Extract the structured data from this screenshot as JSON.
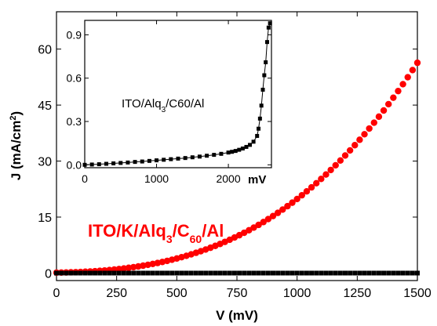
{
  "chart_data": [
    {
      "type": "scatter",
      "xlabel": "V (mV)",
      "ylabel_parts": {
        "base": "J (mA/cm",
        "sup": "2",
        "end": ")"
      },
      "xlim": [
        0,
        1500
      ],
      "ylim": [
        -2,
        70
      ],
      "x_ticks": [
        0,
        250,
        500,
        750,
        1000,
        1250,
        1500
      ],
      "y_ticks": [
        0,
        15,
        30,
        45,
        60
      ],
      "series_label_parts": {
        "a": "ITO/K/Alq",
        "sub1": "3",
        "b": "/C",
        "sub2": "60",
        "c": "/Al"
      },
      "series": [
        {
          "name": "ITO/K/Alq3/C60/Al",
          "marker": "circle",
          "color": "#ff0000",
          "x": [
            0,
            20,
            40,
            60,
            80,
            100,
            120,
            140,
            160,
            180,
            200,
            220,
            240,
            260,
            280,
            300,
            320,
            340,
            360,
            380,
            400,
            420,
            440,
            460,
            480,
            500,
            520,
            540,
            560,
            580,
            600,
            620,
            640,
            660,
            680,
            700,
            720,
            740,
            760,
            780,
            800,
            820,
            840,
            860,
            880,
            900,
            920,
            940,
            960,
            980,
            1000,
            1020,
            1040,
            1060,
            1080,
            1100,
            1120,
            1140,
            1160,
            1180,
            1200,
            1220,
            1240,
            1260,
            1280,
            1300,
            1320,
            1340,
            1360,
            1380,
            1400,
            1420,
            1440,
            1460,
            1480,
            1500
          ],
          "y": [
            0.12,
            0.14,
            0.17,
            0.21,
            0.25,
            0.3,
            0.36,
            0.43,
            0.51,
            0.6,
            0.7,
            0.82,
            0.95,
            1.09,
            1.24,
            1.41,
            1.59,
            1.78,
            1.99,
            2.21,
            2.45,
            2.7,
            2.98,
            3.27,
            3.58,
            3.91,
            4.26,
            4.63,
            5.02,
            5.43,
            5.86,
            6.31,
            6.79,
            7.29,
            7.81,
            8.36,
            8.93,
            9.53,
            10.15,
            10.8,
            11.48,
            12.18,
            12.91,
            13.67,
            14.46,
            15.28,
            16.13,
            17.01,
            17.92,
            18.86,
            19.84,
            20.85,
            21.89,
            22.96,
            24.07,
            25.22,
            26.4,
            27.62,
            28.87,
            30.16,
            31.49,
            32.86,
            34.26,
            35.71,
            37.19,
            38.72,
            40.29,
            41.9,
            43.55,
            45.24,
            46.98,
            48.76,
            50.59,
            52.46,
            54.37,
            56.33
          ]
        },
        {
          "name": "ITO/Alq3/C60/Al",
          "marker": "square",
          "color": "#000000",
          "x": [
            0,
            20,
            40,
            60,
            80,
            100,
            120,
            140,
            160,
            180,
            200,
            220,
            240,
            260,
            280,
            300,
            320,
            340,
            360,
            380,
            400,
            420,
            440,
            460,
            480,
            500,
            520,
            540,
            560,
            580,
            600,
            620,
            640,
            660,
            680,
            700,
            720,
            740,
            760,
            780,
            800,
            820,
            840,
            860,
            880,
            900,
            920,
            940,
            960,
            980,
            1000,
            1020,
            1040,
            1060,
            1080,
            1100,
            1120,
            1140,
            1160,
            1180,
            1200,
            1220,
            1240,
            1260,
            1280,
            1300,
            1320,
            1340,
            1360,
            1380,
            1400,
            1420,
            1440,
            1460,
            1480,
            1500
          ],
          "y": [
            0,
            0,
            0,
            0,
            0,
            0,
            0,
            0,
            0,
            0,
            0,
            0,
            0,
            0,
            0,
            0,
            0,
            0,
            0,
            0,
            0,
            0,
            0,
            0,
            0,
            0,
            0,
            0,
            0,
            0,
            0,
            0,
            0,
            0,
            0,
            0,
            0,
            0,
            0,
            0,
            0,
            0,
            0,
            0,
            0,
            0,
            0,
            0,
            0,
            0,
            0,
            0,
            0,
            0,
            0,
            0,
            0,
            0,
            0,
            0,
            0,
            0,
            0,
            0,
            0,
            0,
            0,
            0,
            0,
            0,
            0,
            0,
            0,
            0,
            0,
            0
          ]
        }
      ]
    },
    {
      "type": "line",
      "inset": true,
      "xlabel": "mV",
      "xlim": [
        0,
        2600
      ],
      "ylim": [
        -0.02,
        1.0
      ],
      "x_ticks": [
        0,
        1000,
        2000
      ],
      "x_tick_labels": [
        "0",
        "1000",
        "2000"
      ],
      "y_ticks": [
        0.0,
        0.3,
        0.6,
        0.9
      ],
      "y_tick_labels": [
        "0.0",
        "0.3",
        "0.6",
        "0.9"
      ],
      "annotation_parts": {
        "a": "ITO/Alq",
        "sub1": "3",
        "b": "/C60/Al"
      },
      "series": [
        {
          "name": "ITO/Alq3/C60/Al",
          "marker": "square",
          "color": "#000000",
          "x": [
            0,
            100,
            200,
            300,
            400,
            500,
            600,
            700,
            800,
            900,
            1000,
            1100,
            1200,
            1300,
            1400,
            1500,
            1600,
            1700,
            1800,
            1900,
            2000,
            2050,
            2100,
            2150,
            2200,
            2250,
            2300,
            2350,
            2400,
            2420,
            2440,
            2460,
            2480,
            2500,
            2520,
            2540,
            2560,
            2580
          ],
          "y": [
            0.0,
            0.002,
            0.004,
            0.007,
            0.01,
            0.013,
            0.016,
            0.02,
            0.023,
            0.027,
            0.031,
            0.035,
            0.039,
            0.043,
            0.047,
            0.052,
            0.057,
            0.063,
            0.069,
            0.076,
            0.085,
            0.09,
            0.096,
            0.104,
            0.113,
            0.124,
            0.138,
            0.16,
            0.2,
            0.25,
            0.32,
            0.41,
            0.52,
            0.62,
            0.71,
            0.85,
            0.95,
            0.98
          ]
        }
      ]
    }
  ]
}
